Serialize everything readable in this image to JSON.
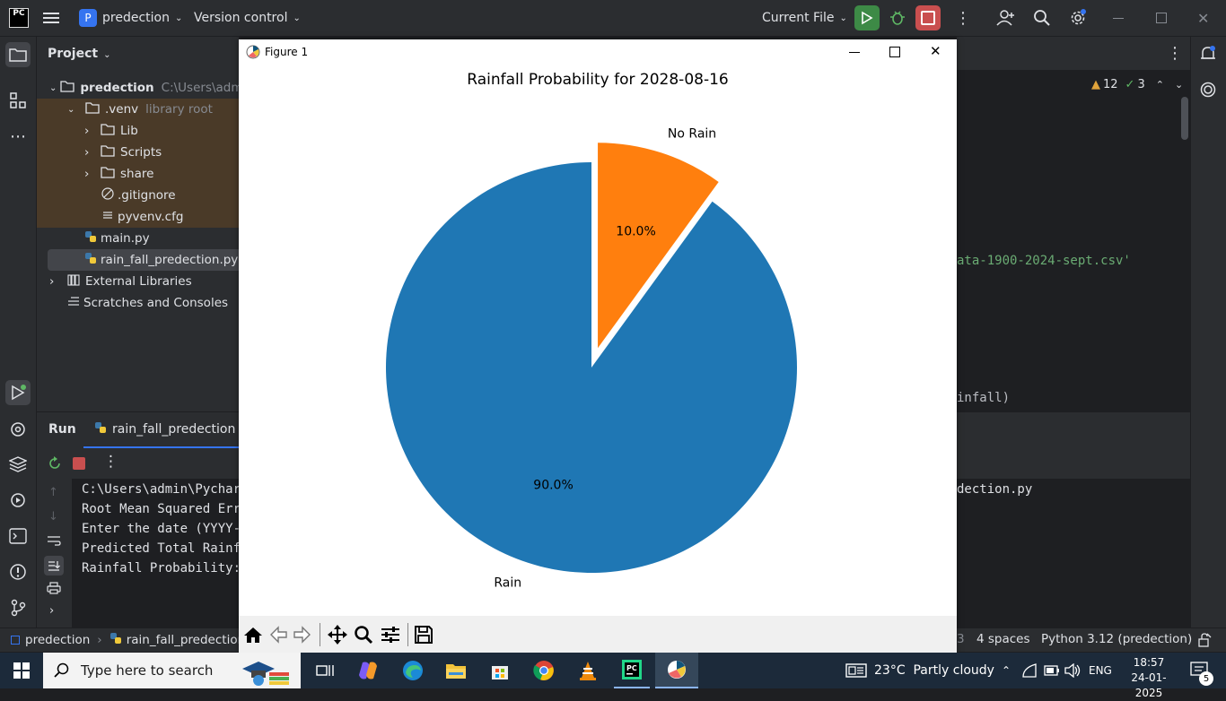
{
  "titlebar": {
    "app_logo": "PC",
    "project_badge": "P",
    "project_name": "predection",
    "vcs_label": "Version control",
    "run_config": "Current File"
  },
  "project_panel": {
    "title": "Project",
    "root_name": "predection",
    "root_path": "C:\\Users\\admin",
    "items": [
      {
        "label": ".venv",
        "hint": "library root"
      },
      {
        "label": "Lib"
      },
      {
        "label": "Scripts"
      },
      {
        "label": "share"
      },
      {
        "label": ".gitignore"
      },
      {
        "label": "pyvenv.cfg"
      },
      {
        "label": "main.py"
      },
      {
        "label": "rain_fall_predection.py"
      },
      {
        "label": "External Libraries"
      },
      {
        "label": "Scratches and Consoles"
      }
    ]
  },
  "editor": {
    "warnings": "12",
    "checks": "3",
    "code_line_1": "ata-1900-2024-sept.csv'",
    "code_line_2": "infall)"
  },
  "run_panel": {
    "title": "Run",
    "tab_label": "rain_fall_predection",
    "console": [
      "C:\\Users\\admin\\Pycharm",
      "Root Mean Squared Erro",
      "Enter the date (YYYY-M",
      "Predicted Total Rainfa",
      "Rainfall Probability:"
    ],
    "console_right": "dection.py"
  },
  "statusbar": {
    "crumb_project": "predection",
    "crumb_file": "rain_fall_predection.p",
    "line_info": "3",
    "indent": "4 spaces",
    "interpreter": "Python 3.12 (predection)"
  },
  "figure": {
    "window_title": "Figure 1"
  },
  "chart_data": {
    "type": "pie",
    "title": "Rainfall Probability for 2028-08-16",
    "slices": [
      {
        "label": "Rain",
        "value": 90.0,
        "pct_label": "90.0%",
        "color": "#1f77b4",
        "explode": 0
      },
      {
        "label": "No Rain",
        "value": 10.0,
        "pct_label": "10.0%",
        "color": "#ff7f0e",
        "explode": 0.1
      }
    ],
    "startangle": 90
  },
  "taskbar": {
    "search_placeholder": "Type here to search",
    "weather": "23°C  Partly cloudy",
    "lang": "ENG",
    "time": "18:57",
    "date": "24-01-2025",
    "notif_count": "5"
  }
}
